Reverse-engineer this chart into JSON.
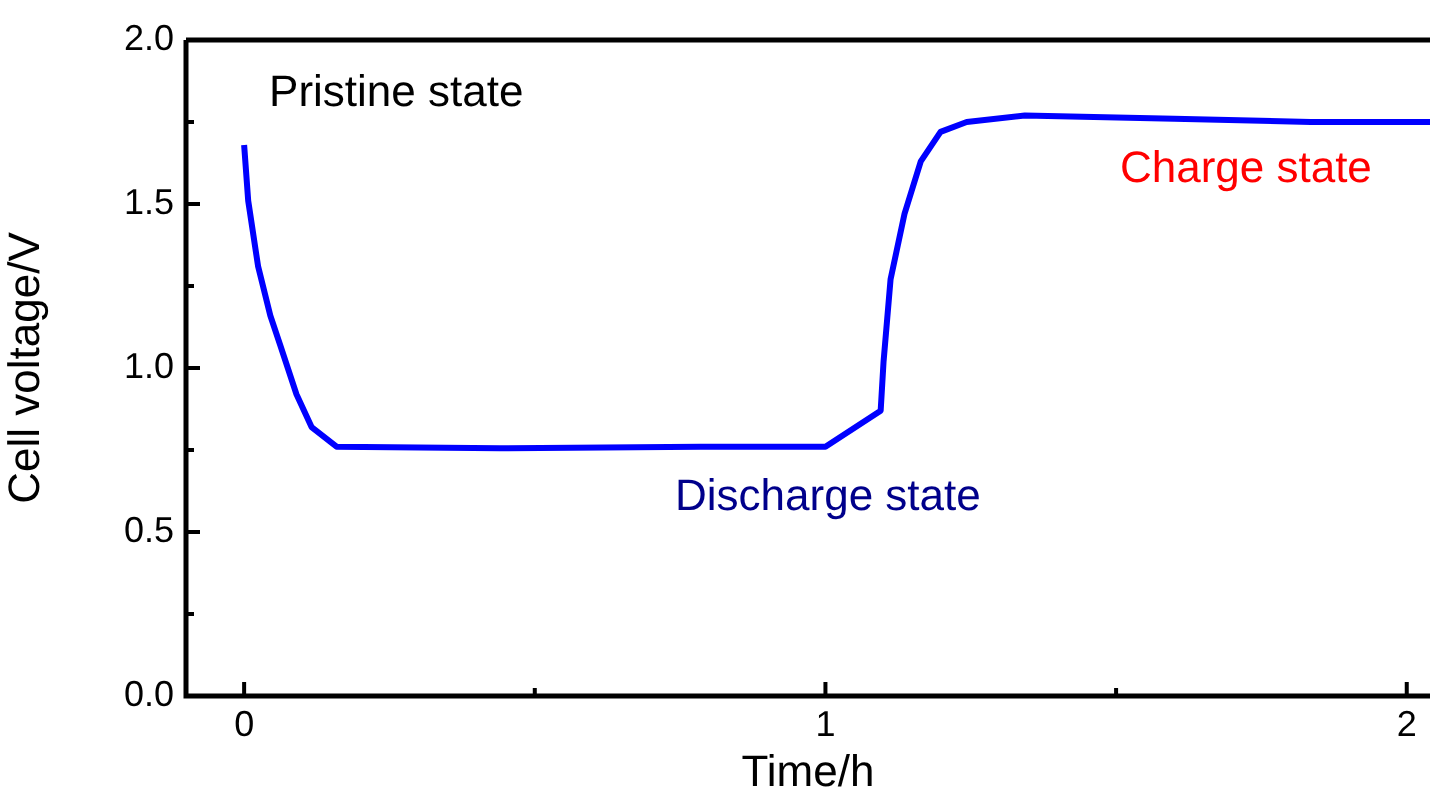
{
  "chart_data": {
    "type": "line",
    "xlabel": "Time/h",
    "ylabel": "Cell voltage/V",
    "x": [
      0,
      0.007,
      0.024,
      0.045,
      0.062,
      0.09,
      0.116,
      0.159,
      0.44,
      0.785,
      1.0,
      1.095,
      1.1,
      1.112,
      1.136,
      1.164,
      1.198,
      1.243,
      1.343,
      1.6,
      1.835,
      2.04
    ],
    "series": [
      {
        "color": "#0000ff",
        "values": [
          1.68,
          1.51,
          1.31,
          1.16,
          1.07,
          0.92,
          0.82,
          0.76,
          0.755,
          0.76,
          0.76,
          0.87,
          1.02,
          1.27,
          1.47,
          1.63,
          1.72,
          1.75,
          1.77,
          1.76,
          1.75,
          1.75
        ]
      }
    ],
    "xlim": [
      -0.1,
      2.04
    ],
    "xticks": [
      0,
      {
        "value": 0.5,
        "label": null
      },
      1,
      {
        "value": 1.5,
        "label": null
      },
      2
    ],
    "ylim": [
      0,
      2
    ],
    "yticks": [
      {
        "value": 0,
        "label": "0.0"
      },
      {
        "value": 0.5,
        "label": "0.5"
      },
      {
        "value": 1,
        "label": "1.0"
      },
      {
        "value": 1.5,
        "label": "1.5"
      },
      {
        "value": 2,
        "label": "2.0"
      }
    ],
    "annotations": [
      "Pristine state",
      "Discharge state",
      "Charge state"
    ],
    "marker": "none",
    "line_style": "solid",
    "legend": false,
    "grid": false
  }
}
